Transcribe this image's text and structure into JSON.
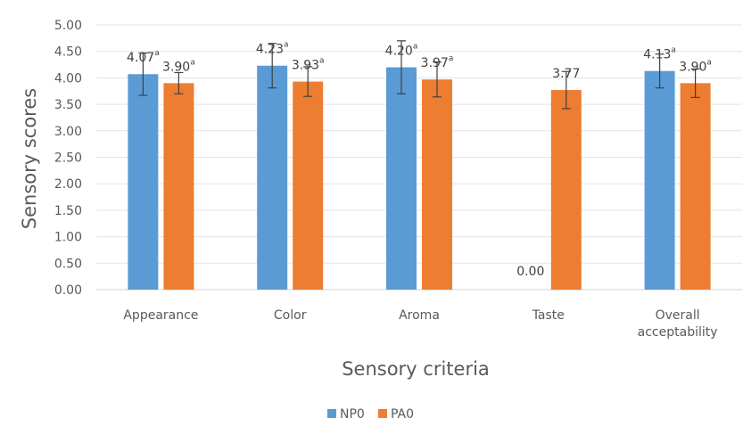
{
  "chart_data": {
    "type": "bar",
    "title": "",
    "xlabel": "Sensory criteria",
    "ylabel": "Sensory scores",
    "ylim": [
      0,
      5
    ],
    "ytick_step": 0.5,
    "yticks": [
      "0.00",
      "0.50",
      "1.00",
      "1.50",
      "2.00",
      "2.50",
      "3.00",
      "3.50",
      "4.00",
      "4.50",
      "5.00"
    ],
    "categories": [
      [
        "Appearance"
      ],
      [
        "Color"
      ],
      [
        "Aroma"
      ],
      [
        "Taste"
      ],
      [
        "Overall",
        "acceptability"
      ]
    ],
    "grid": true,
    "legend_position": "bottom",
    "series": [
      {
        "name": "NP0",
        "color": "#5b9bd5",
        "values": [
          4.07,
          4.23,
          4.2,
          0.0,
          4.13
        ],
        "errors": [
          0.4,
          0.42,
          0.5,
          null,
          0.32
        ],
        "labels": [
          "4.07",
          "4.23",
          "4.20",
          "0.00",
          "4.13"
        ],
        "sups": [
          "a",
          "a",
          "a",
          "",
          "a"
        ]
      },
      {
        "name": "PA0",
        "color": "#ed7d31",
        "values": [
          3.9,
          3.93,
          3.97,
          3.77,
          3.9
        ],
        "errors": [
          0.2,
          0.28,
          0.33,
          0.35,
          0.27
        ],
        "labels": [
          "3.90",
          "3.93",
          "3.97",
          "3.77",
          "3.90"
        ],
        "sups": [
          "a",
          "a",
          "a",
          "",
          "a"
        ]
      }
    ]
  }
}
